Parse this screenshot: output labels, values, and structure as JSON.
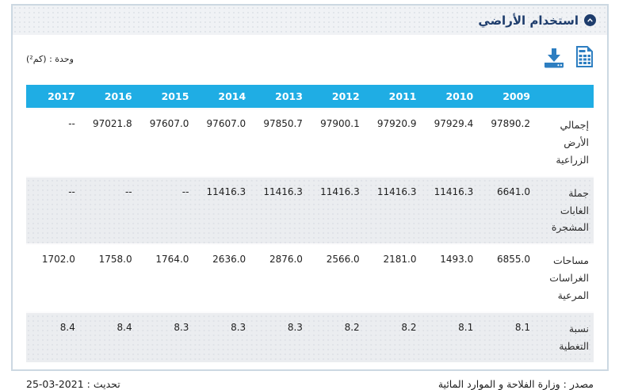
{
  "card": {
    "title": "استخدام الأراضي",
    "unit_label": "وحدة : (كم²)"
  },
  "table": {
    "years": [
      "2009",
      "2010",
      "2011",
      "2012",
      "2013",
      "2014",
      "2015",
      "2016",
      "2017"
    ],
    "rows": [
      {
        "label": "إجمالي الأرض الزراعية",
        "values": [
          "97890.2",
          "97929.4",
          "97920.9",
          "97900.1",
          "97850.7",
          "97607.0",
          "97607.0",
          "97021.8",
          "--"
        ]
      },
      {
        "label": "جملة الغابات المشجرة",
        "values": [
          "6641.0",
          "11416.3",
          "11416.3",
          "11416.3",
          "11416.3",
          "11416.3",
          "--",
          "--",
          "--"
        ]
      },
      {
        "label": "مساحات الغراسات المرعية",
        "values": [
          "6855.0",
          "1493.0",
          "2181.0",
          "2566.0",
          "2876.0",
          "2636.0",
          "1764.0",
          "1758.0",
          "1702.0"
        ]
      },
      {
        "label": "نسبة التغطية",
        "values": [
          "8.1",
          "8.1",
          "8.2",
          "8.2",
          "8.3",
          "8.3",
          "8.3",
          "8.4",
          "8.4"
        ]
      }
    ]
  },
  "footer": {
    "source": "مصدر : وزارة الفلاحة و الموارد المائية",
    "updated_label": "تحديث :",
    "updated_date": "25-03-2021"
  },
  "colors": {
    "table_header": "#1fade4",
    "title_navy": "#1d3c6c",
    "icon_blue": "#2d7ec1",
    "zebra_gray": "#ebedf0",
    "card_border": "#ccd8e2"
  }
}
